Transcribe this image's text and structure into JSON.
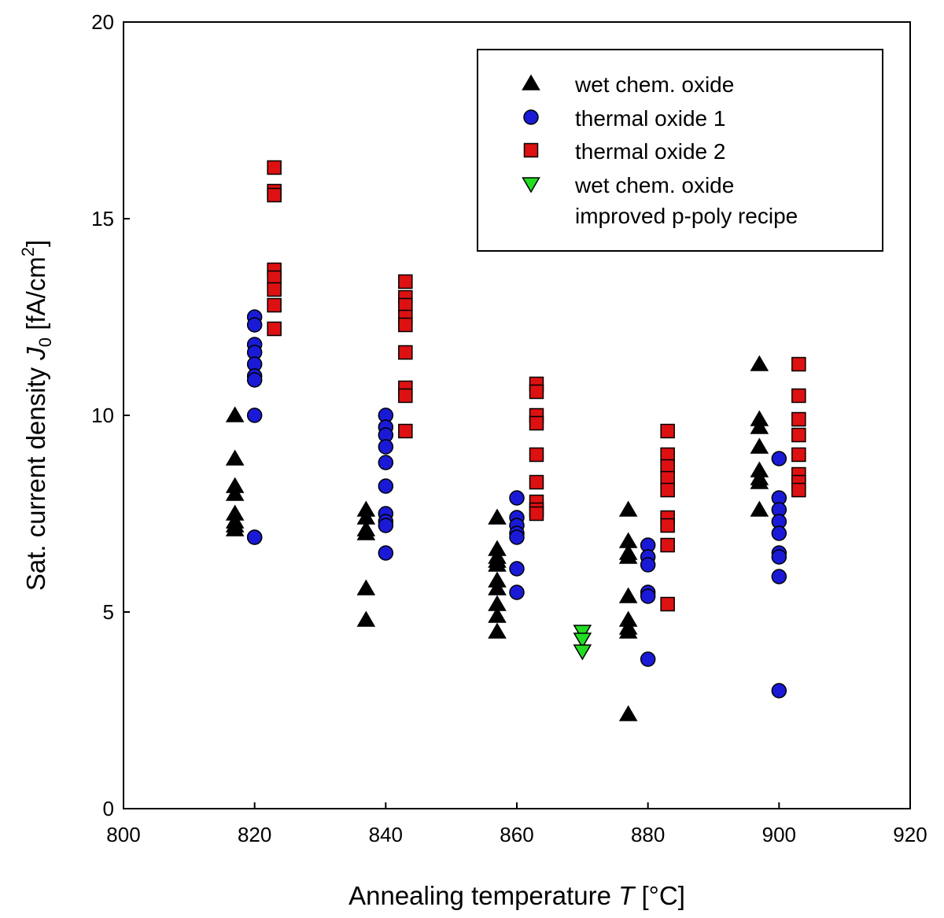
{
  "chart_data": {
    "type": "scatter",
    "title": "",
    "xlabel": {
      "prefix": "Annealing temperature ",
      "var": "T",
      "suffix": " [°C]"
    },
    "ylabel": {
      "prefix": "Sat. current density ",
      "var": "J",
      "sub": "0",
      "unit_pre": " [fA/cm",
      "sup": "2",
      "unit_post": "]"
    },
    "xlim": [
      800,
      920
    ],
    "ylim": [
      0,
      20
    ],
    "xticks": [
      "800",
      "820",
      "840",
      "860",
      "880",
      "900",
      "920"
    ],
    "yticks": [
      "0",
      "5",
      "10",
      "15",
      "20"
    ],
    "grid": false,
    "legend_position": "top-right",
    "series": [
      {
        "name": "wet chem. oxide",
        "marker": "triangle-up",
        "color": "#000000",
        "x": [
          817,
          817,
          817,
          817,
          817,
          817,
          817,
          817,
          837,
          837,
          837,
          837,
          837,
          837,
          857,
          857,
          857,
          857,
          857,
          857,
          857,
          857,
          857,
          857,
          877,
          877,
          877,
          877,
          877,
          877,
          877,
          877,
          877,
          897,
          897,
          897,
          897,
          897,
          897,
          897,
          897
        ],
        "y": [
          10.0,
          8.9,
          8.2,
          8.0,
          7.5,
          7.3,
          7.2,
          7.1,
          7.6,
          7.4,
          7.1,
          7.0,
          5.6,
          4.8,
          7.4,
          6.6,
          6.4,
          6.2,
          5.8,
          5.6,
          5.2,
          4.9,
          4.5,
          6.3,
          7.6,
          6.8,
          6.5,
          6.4,
          5.4,
          4.8,
          4.6,
          4.5,
          2.4,
          11.3,
          9.9,
          9.7,
          9.2,
          8.6,
          8.4,
          8.3,
          7.6
        ]
      },
      {
        "name": "thermal oxide 1",
        "marker": "circle",
        "color": "#1a1ad6",
        "x": [
          820,
          820,
          820,
          820,
          820,
          820,
          820,
          820,
          820,
          820,
          840,
          840,
          840,
          840,
          840,
          840,
          840,
          840,
          840,
          840,
          860,
          860,
          860,
          860,
          860,
          860,
          860,
          880,
          880,
          880,
          880,
          880,
          880,
          900,
          900,
          900,
          900,
          900,
          900,
          900,
          900,
          900
        ],
        "y": [
          12.5,
          12.3,
          11.8,
          11.6,
          11.3,
          11.0,
          10.9,
          10.0,
          6.9,
          6.9,
          10.0,
          9.7,
          9.5,
          9.2,
          8.8,
          8.2,
          7.5,
          7.3,
          7.2,
          6.5,
          7.9,
          7.4,
          7.2,
          7.0,
          6.9,
          6.1,
          5.5,
          6.7,
          6.4,
          6.2,
          5.5,
          5.4,
          3.8,
          8.9,
          7.9,
          7.6,
          7.3,
          7.0,
          6.5,
          6.4,
          5.9,
          3.0
        ]
      },
      {
        "name": "thermal oxide 2",
        "marker": "square",
        "color": "#dd1111",
        "x": [
          823,
          823,
          823,
          823,
          823,
          823,
          823,
          823,
          843,
          843,
          843,
          843,
          843,
          843,
          843,
          843,
          843,
          863,
          863,
          863,
          863,
          863,
          863,
          863,
          863,
          863,
          883,
          883,
          883,
          883,
          883,
          883,
          883,
          883,
          883,
          903,
          903,
          903,
          903,
          903,
          903,
          903,
          903
        ],
        "y": [
          16.3,
          15.7,
          13.7,
          13.5,
          13.2,
          12.8,
          12.2,
          15.6,
          13.4,
          13.0,
          12.8,
          12.5,
          12.3,
          11.6,
          10.7,
          10.5,
          9.6,
          10.8,
          10.6,
          10.0,
          9.8,
          9.0,
          8.3,
          7.8,
          7.6,
          7.5,
          9.6,
          9.0,
          8.7,
          8.4,
          8.1,
          7.4,
          7.2,
          6.7,
          5.2,
          11.3,
          10.5,
          9.9,
          9.5,
          9.0,
          8.5,
          8.3,
          8.1
        ]
      },
      {
        "name": "wet chem. oxide",
        "name_line2": "improved p-poly recipe",
        "marker": "triangle-down",
        "color": "#22dd22",
        "x": [
          870,
          870,
          870
        ],
        "y": [
          4.5,
          4.3,
          4.0
        ]
      }
    ]
  }
}
